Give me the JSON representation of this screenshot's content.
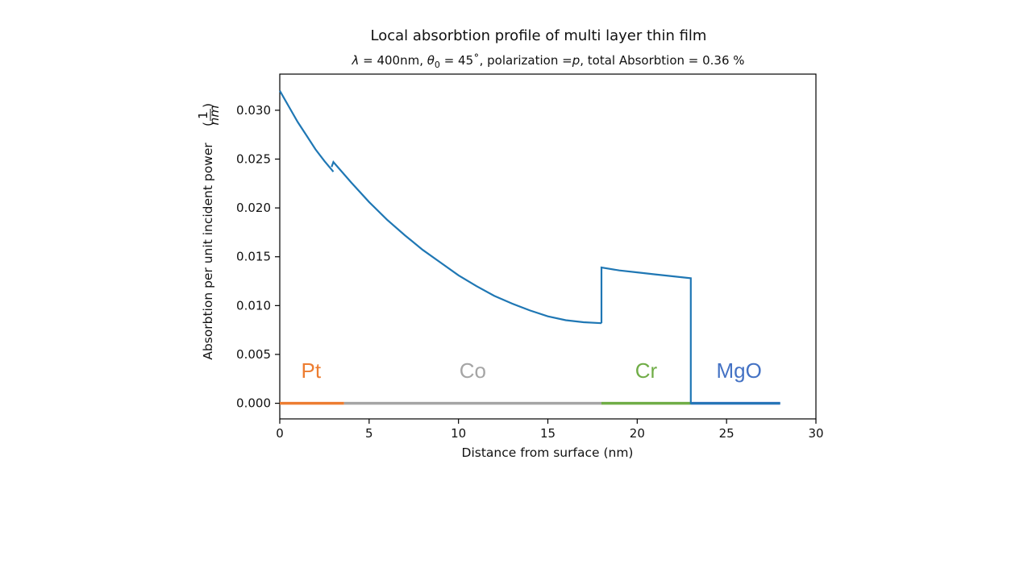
{
  "chart_data": {
    "type": "line",
    "title": "Local absorbtion profile of multi layer thin film",
    "subtitle": "λ = 400nm, θ₀ = 45˚, polarization = p, total Absorbtion = 0.36 %",
    "subtitle_parts": {
      "lambda_sym": "λ",
      "lambda_eq": " = 400nm, ",
      "theta_sym": "θ",
      "theta_sub": "0",
      "theta_eq": " = 45˚, polarization =",
      "pol_sym": "p",
      "tail": ", total Absorbtion = 0.36 %"
    },
    "xlabel": "Distance from surface (nm)",
    "ylabel": "Absorbtion per unit incident power",
    "ylabel_unit_num": "1",
    "ylabel_unit_den": "nm",
    "xlim": [
      0,
      30
    ],
    "ylim": [
      -0.0016,
      0.0337
    ],
    "xticks": [
      0,
      5,
      10,
      15,
      20,
      25,
      30
    ],
    "xtick_labels": [
      "0",
      "5",
      "10",
      "15",
      "20",
      "25",
      "30"
    ],
    "yticks": [
      0.0,
      0.005,
      0.01,
      0.015,
      0.02,
      0.025,
      0.03
    ],
    "ytick_labels": [
      "0.000",
      "0.005",
      "0.010",
      "0.015",
      "0.020",
      "0.025",
      "0.030"
    ],
    "grid": false,
    "series": [
      {
        "color": "#1f77b4",
        "segments": [
          {
            "x": [
              0,
              0.5,
              1.0,
              1.5,
              2.0,
              2.5,
              3.0
            ],
            "y": [
              0.032,
              0.0304,
              0.0288,
              0.0274,
              0.026,
              0.0248,
              0.0237
            ]
          },
          {
            "x": [
              2.9,
              3.0,
              4,
              5,
              6,
              7,
              8,
              9,
              10,
              11,
              12,
              13,
              14,
              15,
              16,
              17,
              18.0
            ],
            "y": [
              0.0242,
              0.0247,
              0.0226,
              0.0206,
              0.0188,
              0.0172,
              0.0157,
              0.0144,
              0.0131,
              0.012,
              0.011,
              0.0102,
              0.0095,
              0.0089,
              0.0085,
              0.0083,
              0.0082
            ]
          },
          {
            "x": [
              18.0,
              18.0,
              19,
              20,
              21,
              22,
              23.0,
              23.0,
              28.0
            ],
            "y": [
              0.0082,
              0.0139,
              0.0136,
              0.0134,
              0.0132,
              0.013,
              0.0128,
              0.0,
              0.0
            ]
          }
        ]
      }
    ],
    "layers": [
      {
        "name": "Pt",
        "x_start": 0,
        "x_end": 3.6,
        "color": "#ed7d31"
      },
      {
        "name": "Co",
        "x_start": 3.6,
        "x_end": 18.0,
        "color": "#a5a5a5"
      },
      {
        "name": "Cr",
        "x_start": 18.0,
        "x_end": 23.0,
        "color": "#70ad47"
      },
      {
        "name": "MgO",
        "x_start": 23.0,
        "x_end": 28.0,
        "color": "#4472c4"
      }
    ],
    "layer_label_y": 0.0026
  }
}
